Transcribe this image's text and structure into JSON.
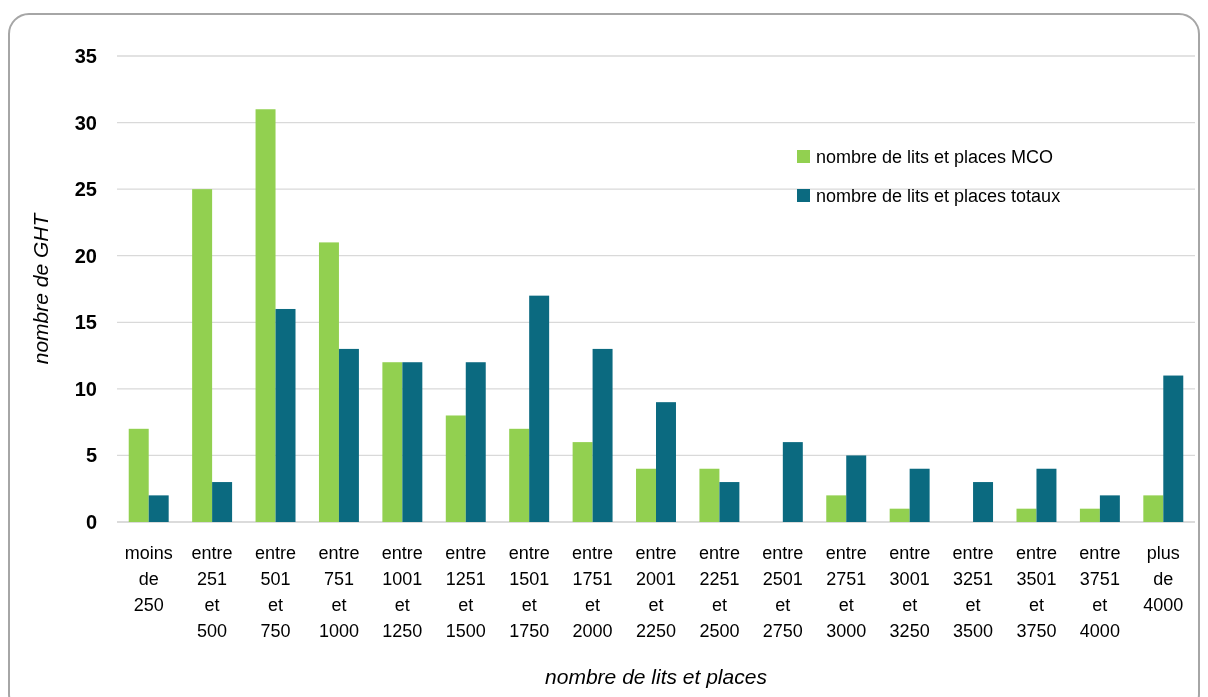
{
  "chart_data": {
    "type": "bar",
    "xlabel": "nombre de lits et places",
    "ylabel": "nombre de GHT",
    "categories": [
      "moins de 250",
      "entre 251 et 500",
      "entre 501 et 750",
      "entre 751 et 1000",
      "entre 1001 et 1250",
      "entre 1251 et 1500",
      "entre 1501 et 1750",
      "entre 1751 et 2000",
      "entre 2001 et 2250",
      "entre 2251 et 2500",
      "entre 2501 et 2750",
      "entre 2751 et 3000",
      "entre 3001 et 3250",
      "entre 3251 et 3500",
      "entre 3501 et 3750",
      "entre 3751 et 4000",
      "plus de 4000"
    ],
    "series": [
      {
        "name": "nombre de lits et places MCO",
        "color": "#92d050",
        "values": [
          7,
          25,
          31,
          21,
          12,
          8,
          7,
          6,
          4,
          4,
          0,
          2,
          1,
          0,
          1,
          1,
          2
        ]
      },
      {
        "name": "nombre de lits et places totaux",
        "color": "#0b6a80",
        "values": [
          2,
          3,
          16,
          13,
          12,
          12,
          17,
          13,
          9,
          3,
          6,
          5,
          4,
          3,
          4,
          2,
          11
        ]
      }
    ],
    "ylim": [
      0,
      35
    ],
    "yticks": [
      0,
      5,
      10,
      15,
      20,
      25,
      30,
      35
    ],
    "grid": "y",
    "legend": "top right"
  }
}
